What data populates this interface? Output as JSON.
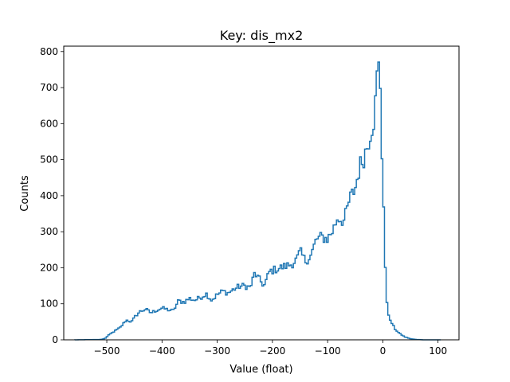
{
  "chart_data": {
    "type": "histogram",
    "title": "Key: dis_mx2",
    "xlabel": "Value (float)",
    "ylabel": "Counts",
    "xlim": [
      -578,
      138
    ],
    "ylim": [
      0,
      815
    ],
    "grid": false,
    "legend": "none",
    "color": "#1f77b4",
    "xticks": [
      -500,
      -400,
      -300,
      -200,
      -100,
      0,
      100
    ],
    "xtick_labels": [
      "−500",
      "−400",
      "−300",
      "−200",
      "−100",
      "0",
      "100"
    ],
    "yticks": [
      0,
      100,
      200,
      300,
      400,
      500,
      600,
      700,
      800
    ],
    "ytick_labels": [
      "0",
      "100",
      "200",
      "300",
      "400",
      "500",
      "600",
      "700",
      "800"
    ],
    "profile_points": [
      [
        -560,
        0
      ],
      [
        -510,
        1
      ],
      [
        -503,
        4
      ],
      [
        -495,
        15
      ],
      [
        -485,
        25
      ],
      [
        -475,
        35
      ],
      [
        -465,
        55
      ],
      [
        -455,
        50
      ],
      [
        -447,
        68
      ],
      [
        -440,
        78
      ],
      [
        -430,
        85
      ],
      [
        -420,
        75
      ],
      [
        -410,
        82
      ],
      [
        -400,
        88
      ],
      [
        -390,
        84
      ],
      [
        -380,
        80
      ],
      [
        -370,
        108
      ],
      [
        -360,
        105
      ],
      [
        -350,
        115
      ],
      [
        -340,
        110
      ],
      [
        -330,
        118
      ],
      [
        -320,
        128
      ],
      [
        -310,
        110
      ],
      [
        -300,
        125
      ],
      [
        -290,
        135
      ],
      [
        -280,
        130
      ],
      [
        -270,
        140
      ],
      [
        -260,
        148
      ],
      [
        -250,
        150
      ],
      [
        -240,
        145
      ],
      [
        -232,
        185
      ],
      [
        -225,
        170
      ],
      [
        -215,
        150
      ],
      [
        -205,
        190
      ],
      [
        -195,
        195
      ],
      [
        -185,
        200
      ],
      [
        -175,
        205
      ],
      [
        -165,
        210
      ],
      [
        -155,
        225
      ],
      [
        -150,
        245
      ],
      [
        -140,
        218
      ],
      [
        -130,
        235
      ],
      [
        -120,
        280
      ],
      [
        -110,
        285
      ],
      [
        -100,
        280
      ],
      [
        -90,
        305
      ],
      [
        -82,
        340
      ],
      [
        -70,
        330
      ],
      [
        -60,
        390
      ],
      [
        -50,
        420
      ],
      [
        -42,
        480
      ],
      [
        -35,
        505
      ],
      [
        -28,
        540
      ],
      [
        -22,
        580
      ],
      [
        -15,
        620
      ],
      [
        -10,
        740
      ],
      [
        -6,
        760
      ],
      [
        -3,
        660
      ],
      [
        0,
        380
      ],
      [
        3,
        360
      ],
      [
        5,
        135
      ],
      [
        8,
        100
      ],
      [
        12,
        55
      ],
      [
        17,
        45
      ],
      [
        22,
        30
      ],
      [
        30,
        18
      ],
      [
        40,
        8
      ],
      [
        50,
        3
      ],
      [
        60,
        1
      ],
      [
        75,
        0
      ],
      [
        105,
        0
      ]
    ],
    "noise_amplitude": 0.06
  }
}
